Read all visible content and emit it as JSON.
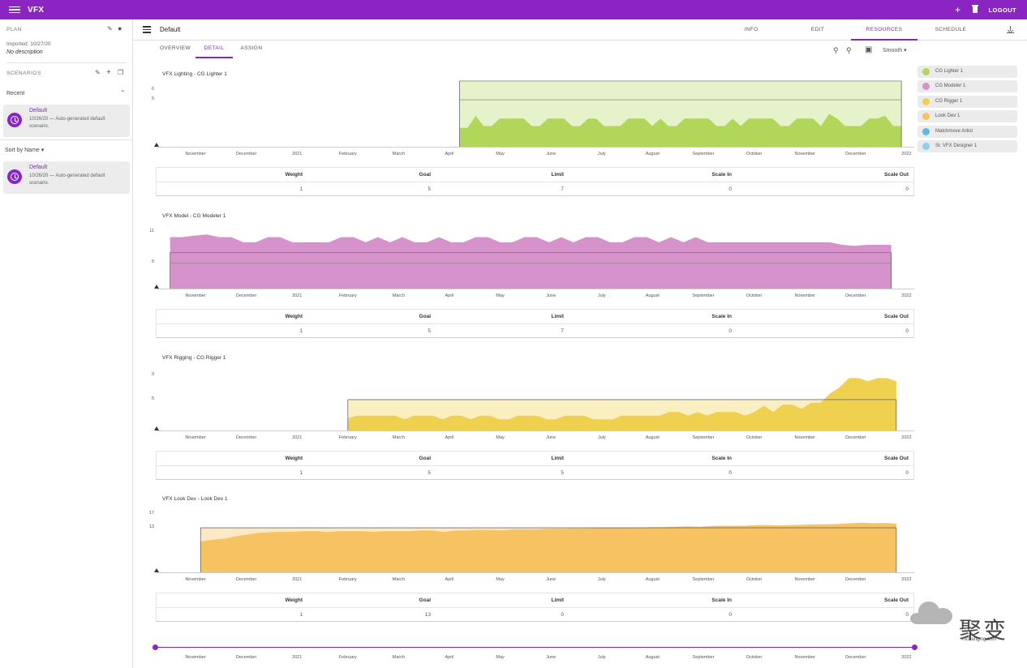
{
  "app": {
    "title": "VFX",
    "logout_label": "LOGOUT"
  },
  "sidebar": {
    "plan_label": "PLAN",
    "imported_text": "Imported: 10/27/20",
    "no_description": "No description",
    "scenarios_label": "SCENARIOS",
    "recent_label": "Recent",
    "recent_card": {
      "title": "Default",
      "subtitle": "10/26/20 — Auto-generated default scenario."
    },
    "sort_label": "Sort by Name",
    "sorted_card": {
      "title": "Default",
      "subtitle": "10/26/20 — Auto-generated default scenario."
    }
  },
  "header": {
    "title": "Default",
    "tabs": [
      {
        "label": "INFO",
        "active": false
      },
      {
        "label": "EDIT",
        "active": false
      },
      {
        "label": "RESOURCES",
        "active": true
      },
      {
        "label": "SCHEDULE",
        "active": false
      }
    ]
  },
  "subtabs": [
    {
      "label": "OVERVIEW",
      "active": false
    },
    {
      "label": "DETAIL",
      "active": true
    },
    {
      "label": "ASSIGN",
      "active": false
    }
  ],
  "toolbar": {
    "smooth_label": "Smooth"
  },
  "legend": [
    {
      "label": "CG Lighter 1",
      "color": "#b2d65a"
    },
    {
      "label": "CG Modeler 1",
      "color": "#d693cb"
    },
    {
      "label": "CG Rigger 1",
      "color": "#efd04f"
    },
    {
      "label": "Look Dev 1",
      "color": "#f7c262"
    },
    {
      "label": "Matchmove Artist",
      "color": "#5fb8e3"
    },
    {
      "label": "Sr. VFX Designer 1",
      "color": "#8ecff0"
    }
  ],
  "months": [
    "November",
    "December",
    "2021",
    "February",
    "March",
    "April",
    "May",
    "June",
    "July",
    "August",
    "September",
    "October",
    "November",
    "December",
    "2022"
  ],
  "table_headers": [
    "Weight",
    "Goal",
    "Limit",
    "Scale In",
    "Scale Out"
  ],
  "chart_data": [
    {
      "type": "area",
      "title": "VFX Lighting - CG Lighter 1",
      "yticks": [
        "6",
        "5"
      ],
      "color": "#b2d65a",
      "band_color": "#e6f2ca",
      "start_month": 5.2,
      "end_month": 13.9,
      "goal": 5,
      "limit": 7,
      "baseline": 2,
      "values": [
        2,
        2,
        3.3,
        2.2,
        2.2,
        3,
        3,
        3,
        3,
        2.2,
        2.2,
        3,
        3,
        3,
        2.2,
        2.2,
        3,
        3,
        2.2,
        2.2,
        2.2,
        3,
        3,
        3,
        2.2,
        3,
        2.2,
        2.2,
        3,
        3,
        3,
        3,
        2.2,
        2.2,
        3,
        2.2,
        3,
        3,
        3,
        3,
        2.2,
        2.2,
        3,
        3,
        3,
        2.2,
        3.5,
        3,
        2.2,
        2.2,
        2.2,
        3,
        3,
        3.3,
        2.2,
        2.2
      ],
      "table": {
        "weight": "1",
        "goal": "5",
        "limit": "7",
        "scale_in": "0",
        "scale_out": "0"
      }
    },
    {
      "type": "area",
      "title": "VFX Model - CG Modeler 1",
      "yticks": [
        "11",
        "5"
      ],
      "color": "#d693cb",
      "band_color": "#f3e1f0",
      "start_month": -0.5,
      "end_month": 13.7,
      "goal": 5,
      "limit": 7,
      "values": [
        10,
        10,
        10.3,
        10.5,
        10,
        10,
        9,
        9,
        10,
        10,
        9,
        9,
        9,
        9,
        10,
        10,
        9,
        10,
        9,
        10,
        9,
        9,
        10,
        9,
        9,
        10,
        10,
        9,
        9,
        10,
        10,
        9,
        10,
        9,
        10,
        10,
        9,
        9,
        10,
        10,
        9,
        10,
        9,
        10,
        9,
        9,
        9,
        9,
        9,
        9,
        9,
        9,
        9,
        9,
        9,
        8.5,
        8.3,
        8.5,
        8.5,
        8.5
      ],
      "table": {
        "weight": "1",
        "goal": "5",
        "limit": "7",
        "scale_in": "0",
        "scale_out": "0"
      }
    },
    {
      "type": "area",
      "title": "VFX Rigging - CG Rigger 1",
      "yticks": [
        "9",
        "5"
      ],
      "color": "#efd04f",
      "band_color": "#f9efc0",
      "start_month": 3.0,
      "end_month": 13.8,
      "goal": 5,
      "limit": 5,
      "values": [
        2,
        2.4,
        2.4,
        2.4,
        2.4,
        2.4,
        1.8,
        2.4,
        2.4,
        2.4,
        1.8,
        2.4,
        2.4,
        1.8,
        2.4,
        2.4,
        1.8,
        1.8,
        2.4,
        2.4,
        2.4,
        1.8,
        1.8,
        2.4,
        2.4,
        2.4,
        1.8,
        1.8,
        1.8,
        2.4,
        2.4,
        2.4,
        2.4,
        2.4,
        3,
        3,
        2.4,
        3,
        2.4,
        3,
        3,
        3,
        2.4,
        3,
        4,
        3,
        4.2,
        4.2,
        3.5,
        4.5,
        4.5,
        6,
        7,
        8.5,
        8.5,
        8,
        8.5,
        8.5,
        8
      ],
      "table": {
        "weight": "1",
        "goal": "5",
        "limit": "5",
        "scale_in": "0",
        "scale_out": "0"
      }
    },
    {
      "type": "area",
      "title": "VFX Look Dev - Look Dev 1",
      "yticks": [
        "17",
        "13"
      ],
      "color": "#f7c262",
      "band_color": "#fbe8c5",
      "start_month": 0.1,
      "end_month": 13.8,
      "goal": 13,
      "limit": 0,
      "values": [
        9,
        9.5,
        9.8,
        10.5,
        11,
        11.5,
        11.7,
        11.8,
        11.8,
        12,
        12,
        11.7,
        12,
        12,
        12,
        11.8,
        12,
        12,
        12,
        12.2,
        12.2,
        11.8,
        12.2,
        12.2,
        12.4,
        12.4,
        12.2,
        12.5,
        12.5,
        12.5,
        12.7,
        12.7,
        12.8,
        12.8,
        12.9,
        13,
        13,
        13,
        13.1,
        13.2,
        13.2,
        13.3,
        13.4,
        13.3,
        13.5,
        13.6,
        13.6,
        13.6,
        13.8,
        13.8,
        13.7,
        13.8,
        13.9,
        14,
        14,
        14.1,
        14.3,
        14.5,
        14.3,
        14.4,
        14.2
      ],
      "table": {
        "weight": "1",
        "goal": "13",
        "limit": "0",
        "scale_in": "0",
        "scale_out": "0"
      }
    }
  ]
}
